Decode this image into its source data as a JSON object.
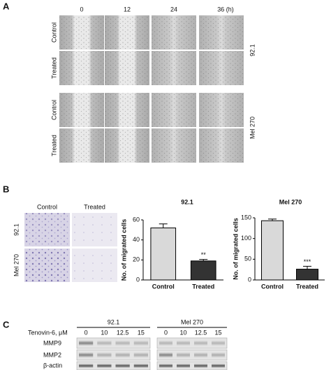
{
  "panels": {
    "A": {
      "label": "A",
      "timepoints": [
        "0",
        "12",
        "24",
        "36 (h)"
      ],
      "rows": [
        "Control",
        "Treated",
        "Control",
        "Treated"
      ],
      "cell_lines": [
        "92.1",
        "Mel 270"
      ]
    },
    "B": {
      "label": "B",
      "image_columns": [
        "Control",
        "Treated"
      ],
      "image_rows": [
        "92.1",
        "Mel 270"
      ]
    },
    "C": {
      "label": "C",
      "treatment": "Tenovin-6, μM",
      "groups": [
        {
          "name": "92.1",
          "doses": [
            "0",
            "10",
            "12.5",
            "15"
          ]
        },
        {
          "name": "Mel 270",
          "doses": [
            "0",
            "10",
            "12.5",
            "15"
          ]
        }
      ],
      "proteins": [
        "MMP9",
        "MMP2",
        "β-actin"
      ]
    }
  },
  "chart_data": [
    {
      "type": "bar",
      "title": "92.1",
      "y_label": "No. of migrated cells",
      "categories": [
        "Control",
        "Treated"
      ],
      "values": [
        52,
        19
      ],
      "errors": [
        4,
        1.5
      ],
      "colors": [
        "#d9d9d9",
        "#333333"
      ],
      "ylim": [
        0,
        60
      ],
      "yticks": [
        0,
        20,
        40,
        60
      ],
      "annotations": [
        {
          "text": "**",
          "x": "Treated"
        }
      ]
    },
    {
      "type": "bar",
      "title": "Mel 270",
      "y_label": "No. of migrated cells",
      "categories": [
        "Control",
        "Treated"
      ],
      "values": [
        143,
        26
      ],
      "errors": [
        4,
        7
      ],
      "colors": [
        "#d9d9d9",
        "#333333"
      ],
      "ylim": [
        0,
        150
      ],
      "yticks": [
        0,
        50,
        100,
        150
      ],
      "annotations": [
        {
          "text": "***",
          "x": "Treated"
        }
      ]
    }
  ]
}
